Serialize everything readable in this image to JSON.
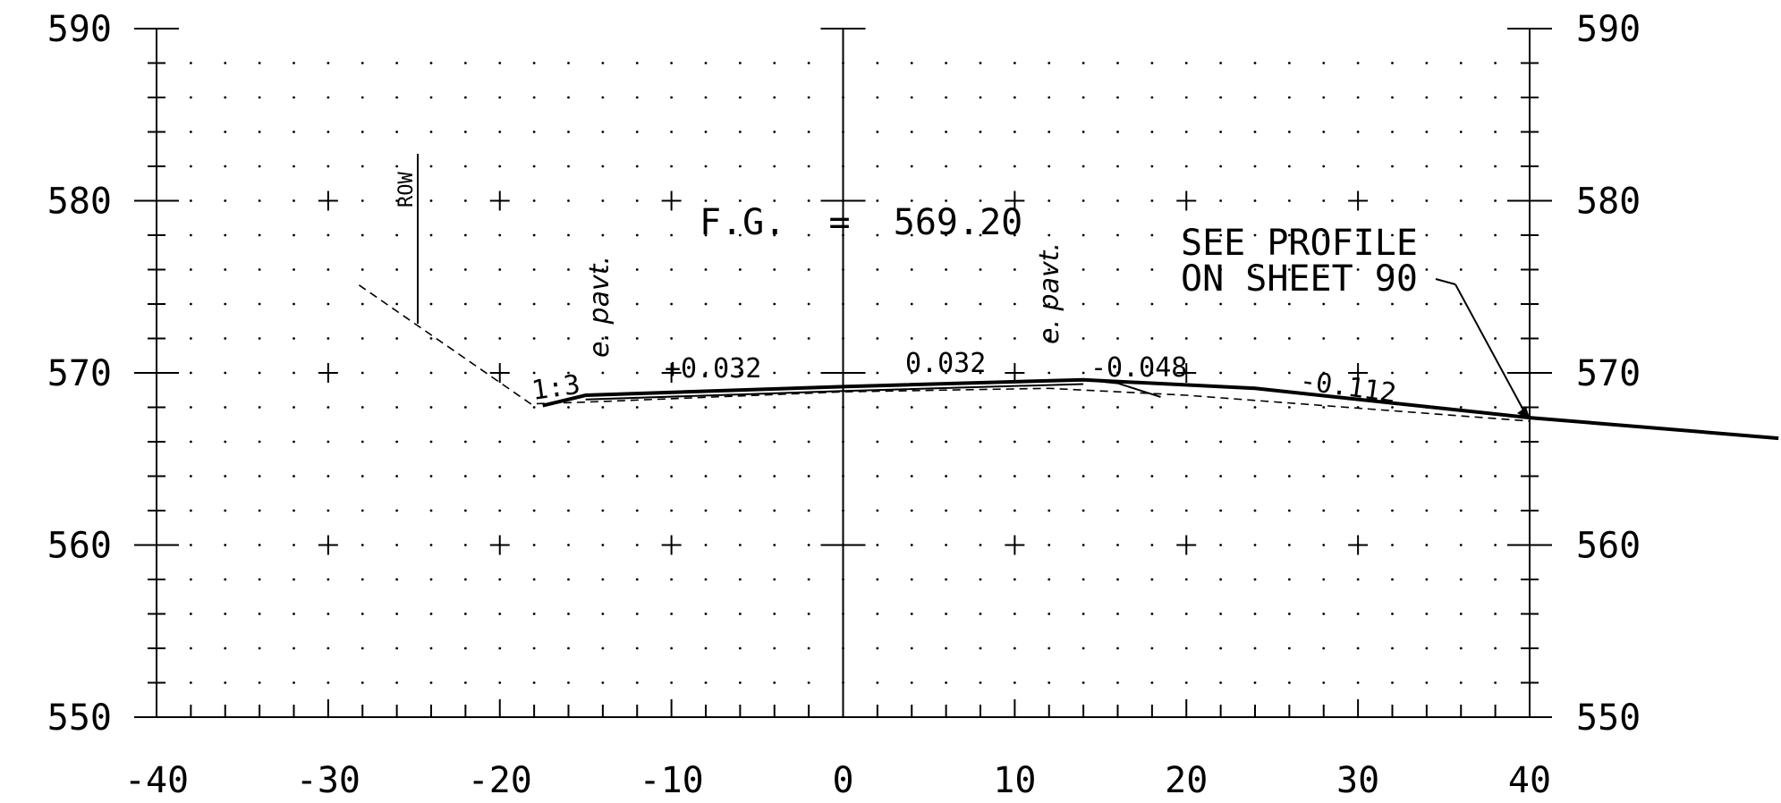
{
  "chart_data": {
    "type": "cross-section",
    "x_ticks": [
      "-40",
      "-30",
      "-20",
      "-10",
      "0",
      "10",
      "20",
      "30",
      "40"
    ],
    "y_ticks": [
      "550",
      "560",
      "570",
      "580",
      "590"
    ],
    "xlim": [
      -40,
      40
    ],
    "ylim": [
      550,
      590
    ],
    "grid": "dotted",
    "finished_grade_label": "F.G.  =  569.20",
    "note_lines": [
      "SEE PROFILE",
      "ON SHEET 90"
    ],
    "row_label": "ROW",
    "edge_label": "e. pavt.",
    "side_slope": "1:3",
    "cross_slopes": [
      "+0.032",
      "0.032",
      "-0.048",
      "-0.112"
    ],
    "proposed_section": [
      {
        "x": -17.5,
        "y": 568.1
      },
      {
        "x": -15,
        "y": 568.7
      },
      {
        "x": 0,
        "y": 569.2
      },
      {
        "x": 14,
        "y": 569.6
      },
      {
        "x": 24,
        "y": 569.1
      },
      {
        "x": 40,
        "y": 567.4
      },
      {
        "x": 54.5,
        "y": 566.2
      }
    ],
    "proposed_section_bottom": [
      {
        "x": -15,
        "y": 568.45
      },
      {
        "x": 0,
        "y": 568.95
      },
      {
        "x": 14,
        "y": 569.35
      }
    ],
    "curb": [
      {
        "x": 14,
        "y": 569.6
      },
      {
        "x": 16,
        "y": 569.4
      },
      {
        "x": 18.5,
        "y": 568.6
      }
    ],
    "existing_ground": [
      {
        "x": -28.2,
        "y": 575.1
      },
      {
        "x": -18.2,
        "y": 568.2
      },
      {
        "x": -15,
        "y": 568.3
      },
      {
        "x": 0,
        "y": 568.9
      },
      {
        "x": 12,
        "y": 569.1
      },
      {
        "x": 20,
        "y": 568.7
      },
      {
        "x": 40,
        "y": 567.2
      }
    ]
  }
}
